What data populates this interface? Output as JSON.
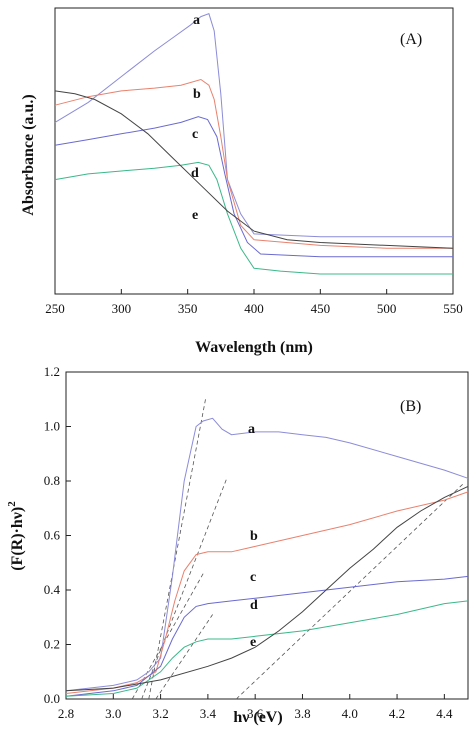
{
  "chart_data": [
    {
      "panel_label": "(A)",
      "type": "line",
      "xlabel": "Wavelength (nm)",
      "ylabel": "Absorbance (a.u.)",
      "xlim": [
        250,
        550
      ],
      "ylim": [
        0,
        1
      ],
      "x_ticks": [
        "250",
        "300",
        "350",
        "400",
        "450",
        "500",
        "550"
      ],
      "y_ticks_labeled": false,
      "grid": false,
      "series": [
        {
          "name": "a",
          "color": "#8c8cd9",
          "x": [
            250,
            275,
            300,
            325,
            340,
            352,
            360,
            366,
            370,
            375,
            380,
            390,
            400,
            450,
            500,
            550
          ],
          "y": [
            0.6,
            0.67,
            0.76,
            0.85,
            0.9,
            0.94,
            0.97,
            0.98,
            0.92,
            0.7,
            0.4,
            0.28,
            0.21,
            0.2,
            0.2,
            0.2
          ]
        },
        {
          "name": "b",
          "color": "#e8826e",
          "x": [
            250,
            275,
            300,
            325,
            345,
            360,
            366,
            370,
            375,
            380,
            390,
            400,
            450,
            500,
            550
          ],
          "y": [
            0.66,
            0.69,
            0.71,
            0.72,
            0.73,
            0.75,
            0.73,
            0.68,
            0.55,
            0.4,
            0.24,
            0.19,
            0.17,
            0.16,
            0.16
          ]
        },
        {
          "name": "c",
          "color": "#6a6ad0",
          "x": [
            250,
            275,
            300,
            325,
            345,
            358,
            365,
            372,
            378,
            385,
            395,
            405,
            450,
            500,
            550
          ],
          "y": [
            0.52,
            0.54,
            0.56,
            0.58,
            0.6,
            0.62,
            0.61,
            0.55,
            0.42,
            0.28,
            0.18,
            0.14,
            0.13,
            0.13,
            0.13
          ]
        },
        {
          "name": "d",
          "color": "#3cb88a",
          "x": [
            250,
            275,
            300,
            325,
            345,
            358,
            366,
            372,
            380,
            390,
            400,
            420,
            450,
            500,
            550
          ],
          "y": [
            0.4,
            0.42,
            0.43,
            0.44,
            0.45,
            0.46,
            0.45,
            0.4,
            0.28,
            0.16,
            0.09,
            0.08,
            0.07,
            0.07,
            0.07
          ]
        },
        {
          "name": "e",
          "color": "#444444",
          "x": [
            250,
            265,
            280,
            300,
            320,
            340,
            360,
            380,
            400,
            425,
            450,
            500,
            550
          ],
          "y": [
            0.71,
            0.7,
            0.68,
            0.63,
            0.56,
            0.47,
            0.38,
            0.29,
            0.22,
            0.19,
            0.18,
            0.17,
            0.16
          ]
        }
      ],
      "annotations": [
        "a",
        "b",
        "c",
        "d",
        "e"
      ]
    },
    {
      "panel_label": "(B)",
      "type": "line",
      "xlabel": "hν (eV)",
      "ylabel": "(F(R)·hν)",
      "ylabel_superscript": "2",
      "xlim": [
        2.8,
        4.5
      ],
      "ylim": [
        0.0,
        1.2
      ],
      "x_ticks": [
        "2.8",
        "3.0",
        "3.2",
        "3.4",
        "3.6",
        "3.8",
        "4.0",
        "4.2",
        "4.4"
      ],
      "y_ticks": [
        "0.0",
        "0.2",
        "0.4",
        "0.6",
        "0.8",
        "1.0",
        "1.2"
      ],
      "grid": false,
      "series": [
        {
          "name": "a",
          "color": "#8c8cd9",
          "x": [
            2.8,
            3.0,
            3.1,
            3.15,
            3.2,
            3.25,
            3.3,
            3.35,
            3.38,
            3.42,
            3.46,
            3.5,
            3.6,
            3.7,
            3.8,
            3.9,
            4.0,
            4.2,
            4.4,
            4.5
          ],
          "y": [
            0.03,
            0.05,
            0.07,
            0.1,
            0.15,
            0.45,
            0.8,
            1.0,
            1.02,
            1.03,
            0.99,
            0.97,
            0.98,
            0.98,
            0.97,
            0.96,
            0.94,
            0.89,
            0.84,
            0.81
          ]
        },
        {
          "name": "b",
          "color": "#e8826e",
          "x": [
            2.8,
            3.0,
            3.1,
            3.18,
            3.22,
            3.26,
            3.3,
            3.35,
            3.4,
            3.5,
            3.6,
            3.8,
            4.0,
            4.2,
            4.4,
            4.5
          ],
          "y": [
            0.02,
            0.04,
            0.06,
            0.1,
            0.22,
            0.36,
            0.47,
            0.53,
            0.54,
            0.54,
            0.56,
            0.6,
            0.64,
            0.69,
            0.73,
            0.76
          ]
        },
        {
          "name": "c",
          "color": "#6a6ad0",
          "x": [
            2.8,
            3.0,
            3.1,
            3.2,
            3.25,
            3.3,
            3.35,
            3.4,
            3.5,
            3.6,
            3.8,
            4.0,
            4.2,
            4.4,
            4.5
          ],
          "y": [
            0.01,
            0.03,
            0.05,
            0.12,
            0.22,
            0.3,
            0.34,
            0.35,
            0.36,
            0.37,
            0.39,
            0.41,
            0.43,
            0.44,
            0.45
          ]
        },
        {
          "name": "d",
          "color": "#3cb88a",
          "x": [
            2.8,
            3.0,
            3.1,
            3.2,
            3.25,
            3.3,
            3.35,
            3.4,
            3.5,
            3.6,
            3.8,
            4.0,
            4.2,
            4.4,
            4.5
          ],
          "y": [
            0.01,
            0.02,
            0.04,
            0.1,
            0.15,
            0.19,
            0.21,
            0.22,
            0.22,
            0.23,
            0.25,
            0.28,
            0.31,
            0.35,
            0.36
          ]
        },
        {
          "name": "e",
          "color": "#444444",
          "x": [
            2.8,
            3.0,
            3.2,
            3.4,
            3.5,
            3.6,
            3.7,
            3.8,
            3.9,
            4.0,
            4.1,
            4.2,
            4.3,
            4.4,
            4.5
          ],
          "y": [
            0.03,
            0.04,
            0.07,
            0.12,
            0.15,
            0.19,
            0.25,
            0.32,
            0.4,
            0.48,
            0.55,
            0.63,
            0.69,
            0.74,
            0.78
          ]
        }
      ],
      "tangent_lines": [
        {
          "x": [
            3.15,
            3.39
          ],
          "y": [
            0.0,
            1.1
          ]
        },
        {
          "x": [
            3.12,
            3.48
          ],
          "y": [
            0.0,
            0.81
          ]
        },
        {
          "x": [
            3.08,
            3.38
          ],
          "y": [
            0.0,
            0.46
          ]
        },
        {
          "x": [
            3.18,
            3.42
          ],
          "y": [
            0.0,
            0.31
          ]
        },
        {
          "x": [
            3.52,
            4.48
          ],
          "y": [
            0.0,
            0.79
          ]
        }
      ],
      "annotations": [
        "a",
        "b",
        "c",
        "d",
        "e"
      ]
    }
  ]
}
